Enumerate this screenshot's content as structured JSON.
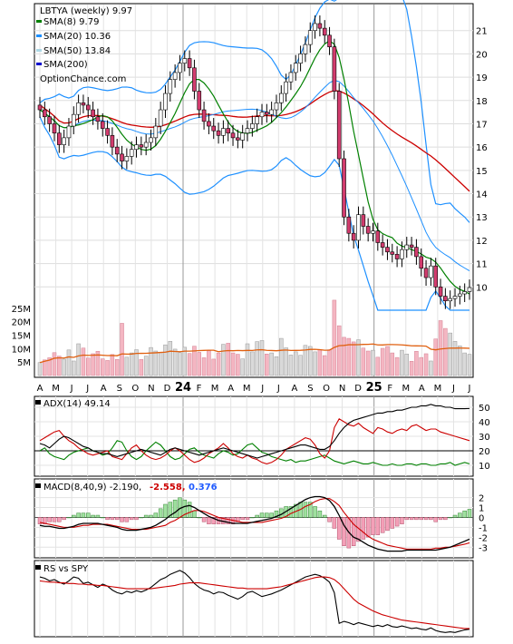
{
  "chart_data": [
    {
      "type": "candlestick",
      "ticker_label": "LBTYA (weekly) 9.97",
      "legend": [
        {
          "label": "SMA(8) 9.79",
          "color": "#008000"
        },
        {
          "label": "SMA(20) 10.36",
          "color": "#1e90ff"
        },
        {
          "label": "SMA(50) 13.84",
          "color": "#add8e6"
        },
        {
          "label": "SMA(200)",
          "color": "#0000cd"
        }
      ],
      "watermark": "OptionChance.com",
      "yticks": [
        10,
        11,
        12,
        13,
        14,
        15,
        16,
        17,
        18,
        19,
        20,
        21
      ],
      "ylim": [
        9,
        22
      ],
      "price_close": [
        17.6,
        17.3,
        17.0,
        16.6,
        16.1,
        16.4,
        16.9,
        17.4,
        17.9,
        17.8,
        17.6,
        17.3,
        17.1,
        16.8,
        16.5,
        16.0,
        15.7,
        15.4,
        15.6,
        15.9,
        16.1,
        16.0,
        16.2,
        16.4,
        16.9,
        17.6,
        18.3,
        18.9,
        19.2,
        19.6,
        19.8,
        19.4,
        18.4,
        17.6,
        17.1,
        16.9,
        16.7,
        16.5,
        16.8,
        16.6,
        16.4,
        16.3,
        16.6,
        16.8,
        17.0,
        17.3,
        17.5,
        17.4,
        17.6,
        17.9,
        18.3,
        18.8,
        19.2,
        19.6,
        20.0,
        20.4,
        21.0,
        21.3,
        21.1,
        20.8,
        20.3,
        18.4,
        15.5,
        13.0,
        12.3,
        12.0,
        13.1,
        12.6,
        12.3,
        12.4,
        11.9,
        11.7,
        11.5,
        11.4,
        11.2,
        11.6,
        11.8,
        11.7,
        11.3,
        10.8,
        10.4,
        10.9,
        10.0,
        9.6,
        9.4,
        9.5,
        9.6,
        9.7,
        9.8,
        9.97
      ],
      "volume_ticks": [
        "5M",
        "10M",
        "15M",
        "20M",
        "25M"
      ],
      "volume_ylim": [
        0,
        30
      ],
      "volume": [
        4.8,
        5.8,
        6.6,
        8.5,
        7.2,
        6.1,
        9.5,
        5.4,
        11.8,
        10.2,
        6.5,
        8.1,
        9.0,
        6.2,
        5.6,
        7.8,
        6.0,
        19.4,
        6.8,
        8.4,
        9.6,
        6.0,
        7.2,
        10.4,
        9.1,
        8.6,
        11.4,
        12.7,
        9.8,
        8.5,
        10.5,
        8.2,
        10.9,
        8.6,
        6.6,
        9.2,
        6.1,
        8.4,
        11.6,
        12.0,
        8.4,
        7.9,
        6.2,
        11.8,
        8.8,
        12.6,
        13.0,
        8.0,
        8.4,
        7.0,
        13.8,
        10.3,
        7.6,
        8.8,
        7.5,
        11.2,
        10.8,
        8.8,
        9.5,
        7.4,
        9.6,
        28.0,
        18.5,
        14.2,
        13.8,
        12.5,
        13.3,
        10.2,
        9.1,
        9.4,
        6.8,
        10.1,
        10.8,
        8.4,
        6.7,
        9.4,
        8.0,
        5.3,
        9.0,
        6.7,
        8.1,
        5.4,
        13.6,
        20.4,
        17.5,
        15.8,
        12.7,
        11.0,
        8.4,
        7.9
      ],
      "xticks": [
        "A",
        "M",
        "J",
        "J",
        "A",
        "S",
        "O",
        "N",
        "D",
        "24",
        "F",
        "M",
        "A",
        "M",
        "J",
        "J",
        "A",
        "S",
        "O",
        "N",
        "D",
        "25",
        "F",
        "M",
        "A",
        "M",
        "J",
        "J"
      ]
    },
    {
      "type": "line",
      "title": "ADX(14) 49.14",
      "yticks": [
        10,
        20,
        30,
        40,
        50
      ],
      "ylim": [
        5,
        55
      ],
      "series": [
        {
          "color": "#000000",
          "values": [
            25,
            24,
            22,
            25,
            28,
            30,
            29,
            27,
            25,
            23,
            22,
            20,
            19,
            18,
            18,
            17,
            16,
            17,
            18,
            19,
            20,
            21,
            20,
            19,
            18,
            17,
            19,
            21,
            22,
            21,
            20,
            19,
            18,
            17,
            18,
            19,
            20,
            21,
            22,
            21,
            20,
            19,
            18,
            17,
            16,
            15,
            16,
            17,
            18,
            19,
            20,
            21,
            22,
            23,
            24,
            24,
            23,
            22,
            21,
            21,
            23,
            27,
            32,
            36,
            39,
            41,
            42,
            43,
            44,
            45,
            46,
            46,
            47,
            47,
            48,
            48,
            49,
            50,
            50,
            51,
            51,
            52,
            51,
            51,
            50,
            50,
            49,
            49,
            49,
            49.14
          ]
        },
        {
          "color": "#cc0000",
          "values": [
            27,
            29,
            31,
            33,
            34,
            30,
            27,
            25,
            22,
            20,
            18,
            17,
            18,
            19,
            20,
            16,
            15,
            14,
            18,
            22,
            24,
            20,
            17,
            15,
            14,
            15,
            17,
            20,
            22,
            20,
            17,
            14,
            12,
            13,
            15,
            18,
            20,
            22,
            25,
            22,
            18,
            16,
            15,
            17,
            15,
            14,
            12,
            11,
            12,
            14,
            17,
            21,
            23,
            25,
            27,
            29,
            28,
            24,
            18,
            15,
            20,
            36,
            42,
            40,
            38,
            37,
            39,
            36,
            34,
            32,
            36,
            35,
            33,
            32,
            34,
            35,
            34,
            37,
            38,
            36,
            34,
            35,
            35,
            33,
            32,
            31,
            30,
            29,
            28,
            27
          ]
        },
        {
          "color": "#008000",
          "values": [
            20,
            22,
            18,
            16,
            15,
            14,
            17,
            19,
            20,
            21,
            22,
            20,
            19,
            17,
            18,
            22,
            27,
            26,
            20,
            16,
            14,
            16,
            20,
            23,
            26,
            24,
            20,
            16,
            14,
            15,
            18,
            21,
            22,
            19,
            17,
            16,
            15,
            18,
            20,
            19,
            17,
            18,
            21,
            24,
            25,
            22,
            19,
            18,
            16,
            15,
            14,
            13,
            14,
            12,
            13,
            13,
            14,
            15,
            16,
            17,
            15,
            13,
            12,
            11,
            12,
            13,
            12,
            11,
            11,
            12,
            11,
            10,
            10,
            11,
            10,
            10,
            11,
            11,
            10,
            11,
            11,
            10,
            10,
            11,
            11,
            12,
            10,
            11,
            12,
            11
          ]
        }
      ],
      "hlines": [
        20
      ]
    },
    {
      "type": "bar+line",
      "title": "MACD(8,40,9) -2.190,",
      "title_values": [
        {
          "text": "-2.558,",
          "color": "#cc0000"
        },
        {
          "text": "0.376",
          "color": "#1e5aff"
        }
      ],
      "yticks": [
        -3,
        -2,
        -1,
        0,
        1,
        2
      ],
      "ylim": [
        -3.8,
        2.6
      ],
      "macd": [
        -0.8,
        -0.9,
        -0.9,
        -1.0,
        -1.1,
        -1.1,
        -1.0,
        -0.9,
        -0.7,
        -0.6,
        -0.6,
        -0.6,
        -0.6,
        -0.7,
        -0.8,
        -0.9,
        -1.0,
        -1.2,
        -1.3,
        -1.3,
        -1.3,
        -1.2,
        -1.1,
        -1.0,
        -0.8,
        -0.5,
        -0.2,
        0.2,
        0.5,
        0.9,
        1.1,
        1.2,
        1.0,
        0.7,
        0.4,
        0.1,
        -0.1,
        -0.3,
        -0.4,
        -0.5,
        -0.6,
        -0.6,
        -0.6,
        -0.6,
        -0.5,
        -0.4,
        -0.3,
        -0.2,
        -0.1,
        0.1,
        0.3,
        0.6,
        0.9,
        1.2,
        1.5,
        1.8,
        2.0,
        2.1,
        2.1,
        2.0,
        1.7,
        1.1,
        0.2,
        -0.8,
        -1.5,
        -2.0,
        -2.2,
        -2.5,
        -2.8,
        -3.0,
        -3.2,
        -3.3,
        -3.4,
        -3.4,
        -3.4,
        -3.4,
        -3.3,
        -3.3,
        -3.3,
        -3.3,
        -3.3,
        -3.3,
        -3.3,
        -3.2,
        -3.1,
        -3.0,
        -2.8,
        -2.6,
        -2.4,
        -2.19
      ],
      "signal": [
        -0.5,
        -0.6,
        -0.7,
        -0.8,
        -0.9,
        -1.0,
        -1.0,
        -1.0,
        -0.9,
        -0.8,
        -0.8,
        -0.7,
        -0.7,
        -0.7,
        -0.7,
        -0.8,
        -0.9,
        -1.0,
        -1.1,
        -1.2,
        -1.2,
        -1.2,
        -1.2,
        -1.1,
        -1.0,
        -0.9,
        -0.8,
        -0.5,
        -0.3,
        0.0,
        0.3,
        0.5,
        0.7,
        0.7,
        0.6,
        0.4,
        0.2,
        0.0,
        -0.1,
        -0.2,
        -0.3,
        -0.4,
        -0.5,
        -0.5,
        -0.5,
        -0.5,
        -0.5,
        -0.4,
        -0.3,
        -0.2,
        -0.1,
        0.1,
        0.4,
        0.6,
        0.8,
        1.1,
        1.3,
        1.6,
        1.8,
        1.9,
        1.9,
        1.6,
        1.2,
        0.5,
        -0.1,
        -0.7,
        -1.1,
        -1.5,
        -1.9,
        -2.2,
        -2.4,
        -2.6,
        -2.8,
        -2.9,
        -3.0,
        -3.1,
        -3.2,
        -3.2,
        -3.2,
        -3.2,
        -3.2,
        -3.2,
        -3.1,
        -3.1,
        -3.0,
        -3.0,
        -2.9,
        -2.8,
        -2.7,
        -2.56
      ],
      "histogram": [
        -0.3,
        -0.3,
        -0.2,
        -0.2,
        -0.2,
        -0.1,
        0.0,
        0.1,
        0.2,
        0.2,
        0.2,
        0.1,
        0.1,
        0.0,
        -0.1,
        -0.1,
        -0.1,
        -0.2,
        -0.2,
        -0.1,
        -0.1,
        0.0,
        0.1,
        0.1,
        0.2,
        0.4,
        0.6,
        0.7,
        0.8,
        0.9,
        0.8,
        0.7,
        0.3,
        0.0,
        -0.2,
        -0.3,
        -0.3,
        -0.3,
        -0.3,
        -0.3,
        -0.3,
        -0.2,
        -0.1,
        -0.1,
        0.0,
        0.1,
        0.2,
        0.2,
        0.2,
        0.3,
        0.4,
        0.5,
        0.5,
        0.6,
        0.7,
        0.7,
        0.7,
        0.5,
        0.3,
        0.1,
        -0.2,
        -0.5,
        -1.0,
        -1.3,
        -1.4,
        -1.3,
        -1.1,
        -1.0,
        -0.9,
        -0.8,
        -0.8,
        -0.7,
        -0.6,
        -0.5,
        -0.4,
        -0.3,
        -0.1,
        -0.1,
        -0.1,
        -0.1,
        -0.1,
        -0.1,
        -0.2,
        -0.1,
        -0.1,
        0.0,
        0.1,
        0.2,
        0.3,
        0.376
      ],
      "hlines": [
        0
      ]
    },
    {
      "type": "line",
      "title": "RS vs SPY",
      "series": [
        {
          "color": "#000000",
          "values": [
            0.86,
            0.84,
            0.8,
            0.82,
            0.78,
            0.75,
            0.8,
            0.86,
            0.84,
            0.76,
            0.78,
            0.74,
            0.7,
            0.75,
            0.72,
            0.66,
            0.62,
            0.6,
            0.64,
            0.62,
            0.65,
            0.63,
            0.66,
            0.7,
            0.76,
            0.82,
            0.85,
            0.9,
            0.93,
            0.96,
            0.92,
            0.85,
            0.76,
            0.7,
            0.66,
            0.64,
            0.6,
            0.63,
            0.62,
            0.58,
            0.55,
            0.52,
            0.56,
            0.62,
            0.64,
            0.6,
            0.56,
            0.58,
            0.6,
            0.63,
            0.66,
            0.7,
            0.74,
            0.78,
            0.82,
            0.86,
            0.88,
            0.9,
            0.88,
            0.84,
            0.78,
            0.62,
            0.15,
            0.18,
            0.16,
            0.13,
            0.16,
            0.14,
            0.12,
            0.1,
            0.12,
            0.1,
            0.13,
            0.1,
            0.09,
            0.11,
            0.09,
            0.07,
            0.08,
            0.06,
            0.05,
            0.08,
            0.04,
            0.02,
            0.01,
            0.02,
            0.01,
            0.03,
            0.05,
            0.06
          ]
        },
        {
          "color": "#cc0000",
          "values": [
            0.8,
            0.79,
            0.78,
            0.78,
            0.77,
            0.77,
            0.76,
            0.76,
            0.75,
            0.75,
            0.74,
            0.74,
            0.73,
            0.73,
            0.72,
            0.71,
            0.7,
            0.69,
            0.68,
            0.68,
            0.68,
            0.68,
            0.68,
            0.68,
            0.69,
            0.7,
            0.71,
            0.72,
            0.73,
            0.75,
            0.76,
            0.77,
            0.77,
            0.77,
            0.76,
            0.75,
            0.74,
            0.73,
            0.72,
            0.71,
            0.7,
            0.69,
            0.69,
            0.68,
            0.68,
            0.68,
            0.68,
            0.68,
            0.69,
            0.7,
            0.71,
            0.73,
            0.75,
            0.77,
            0.79,
            0.81,
            0.83,
            0.85,
            0.86,
            0.86,
            0.85,
            0.82,
            0.76,
            0.68,
            0.6,
            0.52,
            0.46,
            0.42,
            0.38,
            0.34,
            0.31,
            0.28,
            0.26,
            0.24,
            0.22,
            0.2,
            0.19,
            0.18,
            0.17,
            0.16,
            0.15,
            0.14,
            0.13,
            0.12,
            0.11,
            0.1,
            0.09,
            0.08,
            0.07,
            0.07
          ]
        }
      ]
    }
  ]
}
